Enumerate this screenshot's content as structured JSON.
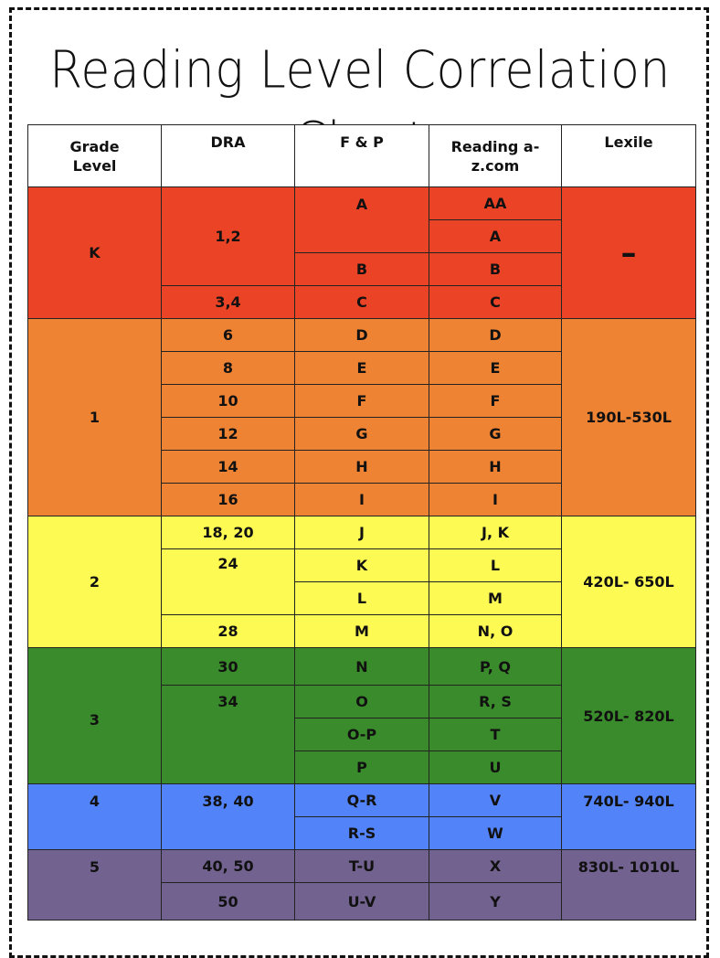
{
  "title": "Reading Level Correlation Chart",
  "colors": {
    "K": "#eb4326",
    "1": "#ee8334",
    "2": "#fdfb53",
    "3": "#3a8b2b",
    "4": "#5383f8",
    "5": "#72628f"
  },
  "headers": {
    "grade": "Grade Level",
    "dra": "DRA",
    "fp": "F & P",
    "raz": "Reading a-z.com",
    "lexile": "Lexile"
  },
  "grades": {
    "k": {
      "grade": "K",
      "lexile": "–",
      "dra": [
        "1,2",
        "3,4"
      ],
      "fp": [
        "A",
        "B",
        "C"
      ],
      "raz": [
        "AA",
        "A",
        "B",
        "C"
      ]
    },
    "g1": {
      "grade": "1",
      "lexile": "190L-530L",
      "dra": [
        "6",
        "8",
        "10",
        "12",
        "14",
        "16"
      ],
      "fp": [
        "D",
        "E",
        "F",
        "G",
        "H",
        "I"
      ],
      "raz": [
        "D",
        "E",
        "F",
        "G",
        "H",
        "I"
      ]
    },
    "g2": {
      "grade": "2",
      "lexile": "420L- 650L",
      "dra": [
        "18, 20",
        "24",
        "28"
      ],
      "fp": [
        "J",
        "K",
        "L",
        "M"
      ],
      "raz": [
        "J, K",
        "L",
        "M",
        "N, O"
      ]
    },
    "g3": {
      "grade": "3",
      "lexile": "520L- 820L",
      "dra": [
        "30",
        "34"
      ],
      "fp": [
        "N",
        "O",
        "O-P",
        "P"
      ],
      "raz": [
        "P, Q",
        "R, S",
        "T",
        "U"
      ]
    },
    "g4": {
      "grade": "4",
      "lexile": "740L- 940L",
      "dra": [
        "38, 40"
      ],
      "fp": [
        "Q-R",
        "R-S"
      ],
      "raz": [
        "V",
        "W"
      ]
    },
    "g5": {
      "grade": "5",
      "lexile": "830L- 1010L",
      "dra": [
        "40, 50",
        "50"
      ],
      "fp": [
        "T-U",
        "U-V"
      ],
      "raz": [
        "X",
        "Y"
      ]
    }
  }
}
